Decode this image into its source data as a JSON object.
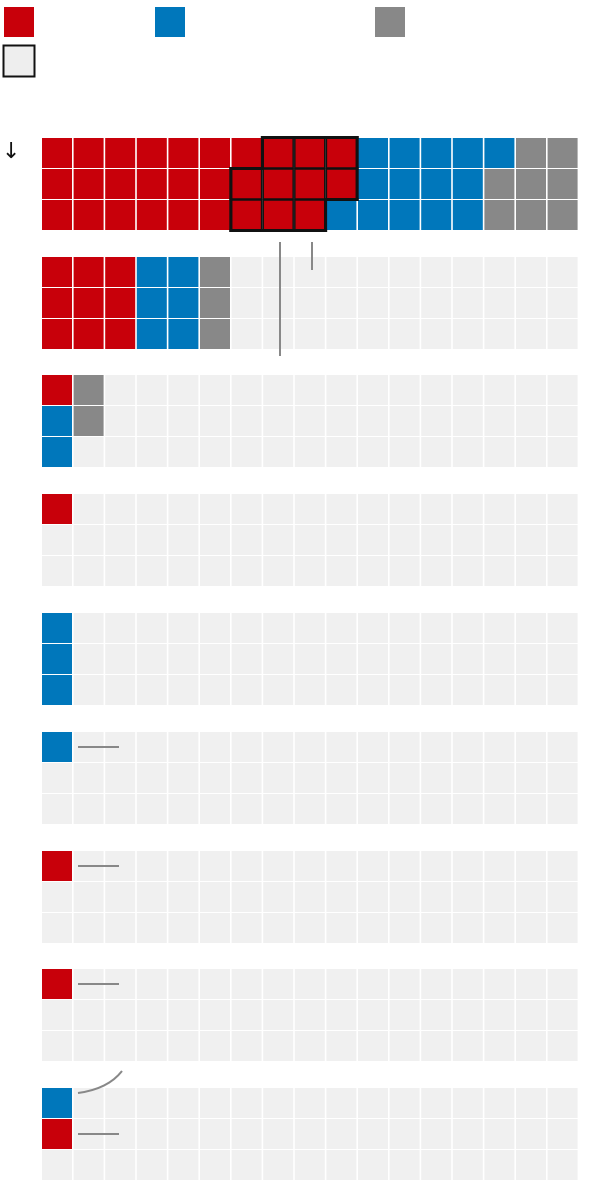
{
  "chart_data": {
    "type": "waffle",
    "colors": {
      "red": "#c8000a",
      "blue": "#0077bb",
      "gray": "#888888",
      "empty": "#f0f0f0",
      "highlight_border": "#111111",
      "highlight_swatch_fill": "#eeeeee",
      "leader_line": "#888888"
    },
    "legend": [
      {
        "color": "red",
        "label": ""
      },
      {
        "color": "blue",
        "label": ""
      },
      {
        "color": "gray",
        "label": ""
      },
      {
        "color": "highlight",
        "label": ""
      }
    ],
    "arrow_glyph": "↓",
    "grid": {
      "columns": 17,
      "rows_per_group": 3
    },
    "groups": [
      {
        "rows": [
          [
            "red",
            "red",
            "red",
            "red",
            "red",
            "red",
            "red",
            "red",
            "red",
            "red",
            "blue",
            "blue",
            "blue",
            "blue",
            "blue",
            "gray",
            "gray"
          ],
          [
            "red",
            "red",
            "red",
            "red",
            "red",
            "red",
            "red",
            "red",
            "red",
            "red",
            "blue",
            "blue",
            "blue",
            "blue",
            "gray",
            "gray",
            "gray"
          ],
          [
            "red",
            "red",
            "red",
            "red",
            "red",
            "red",
            "red",
            "red",
            "red",
            "blue",
            "blue",
            "blue",
            "blue",
            "blue",
            "gray",
            "gray",
            "gray"
          ]
        ],
        "highlighted": [
          [
            0,
            7
          ],
          [
            0,
            8
          ],
          [
            0,
            9
          ],
          [
            1,
            6
          ],
          [
            1,
            7
          ],
          [
            1,
            8
          ],
          [
            1,
            9
          ],
          [
            2,
            6
          ],
          [
            2,
            7
          ],
          [
            2,
            8
          ]
        ]
      },
      {
        "rows": [
          [
            "red",
            "red",
            "red",
            "blue",
            "blue",
            "gray"
          ],
          [
            "red",
            "red",
            "red",
            "blue",
            "blue",
            "gray"
          ],
          [
            "red",
            "red",
            "red",
            "blue",
            "blue",
            "gray"
          ]
        ]
      },
      {
        "rows": [
          [
            "red",
            "gray"
          ],
          [
            "blue",
            "gray"
          ],
          [
            "blue"
          ]
        ]
      },
      {
        "rows": [
          [
            "red"
          ],
          [],
          []
        ]
      },
      {
        "rows": [
          [
            "blue"
          ],
          [
            "blue"
          ],
          [
            "blue"
          ]
        ]
      },
      {
        "rows": [
          [
            "blue"
          ],
          [],
          []
        ],
        "label_lines": [
          0
        ]
      },
      {
        "rows": [
          [
            "red"
          ],
          [],
          []
        ],
        "label_lines": [
          0
        ]
      },
      {
        "rows": [
          [
            "red"
          ],
          [],
          []
        ],
        "label_lines": [
          0
        ]
      },
      {
        "rows": [
          [
            "blue"
          ],
          [
            "red"
          ],
          []
        ],
        "label_lines": [
          0,
          1
        ],
        "curved_line_row": 0
      }
    ]
  }
}
